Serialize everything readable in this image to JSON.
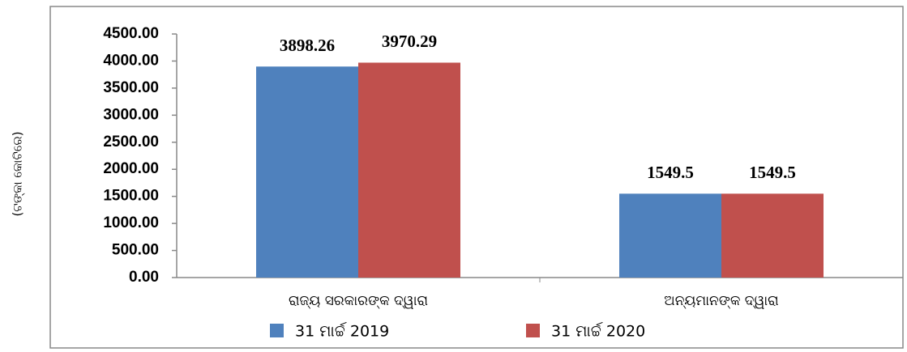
{
  "chart_data": {
    "type": "bar",
    "y_label": "(ଟଙ୍କା କୋଟିରେ)",
    "categories": [
      "ରାଜ୍ୟ ସରକାରଙ୍କ ଦ୍ୱାରା",
      "ଅନ୍ୟମାନଙ୍କ ଦ୍ୱାରା"
    ],
    "series": [
      {
        "name": "31 ମାର୍ଚ୍ଚ 2019",
        "color": "#4f81bd",
        "values": [
          3898.26,
          1549.5
        ]
      },
      {
        "name": "31 ମାର୍ଚ୍ଚ 2020",
        "color": "#c0504d",
        "values": [
          3970.29,
          1549.5
        ]
      }
    ],
    "ylim": [
      0,
      4500
    ],
    "yticks": [
      {
        "value": 0,
        "label": "0.00"
      },
      {
        "value": 500,
        "label": "500.00"
      },
      {
        "value": 1000,
        "label": "1000.00"
      },
      {
        "value": 1500,
        "label": "1500.00"
      },
      {
        "value": 2000,
        "label": "2000.00"
      },
      {
        "value": 2500,
        "label": "2500.00"
      },
      {
        "value": 3000,
        "label": "3000.00"
      },
      {
        "value": 3500,
        "label": "3500.00"
      },
      {
        "value": 4000,
        "label": "4000.00"
      },
      {
        "value": 4500,
        "label": "4500.00"
      }
    ],
    "grid": false
  }
}
